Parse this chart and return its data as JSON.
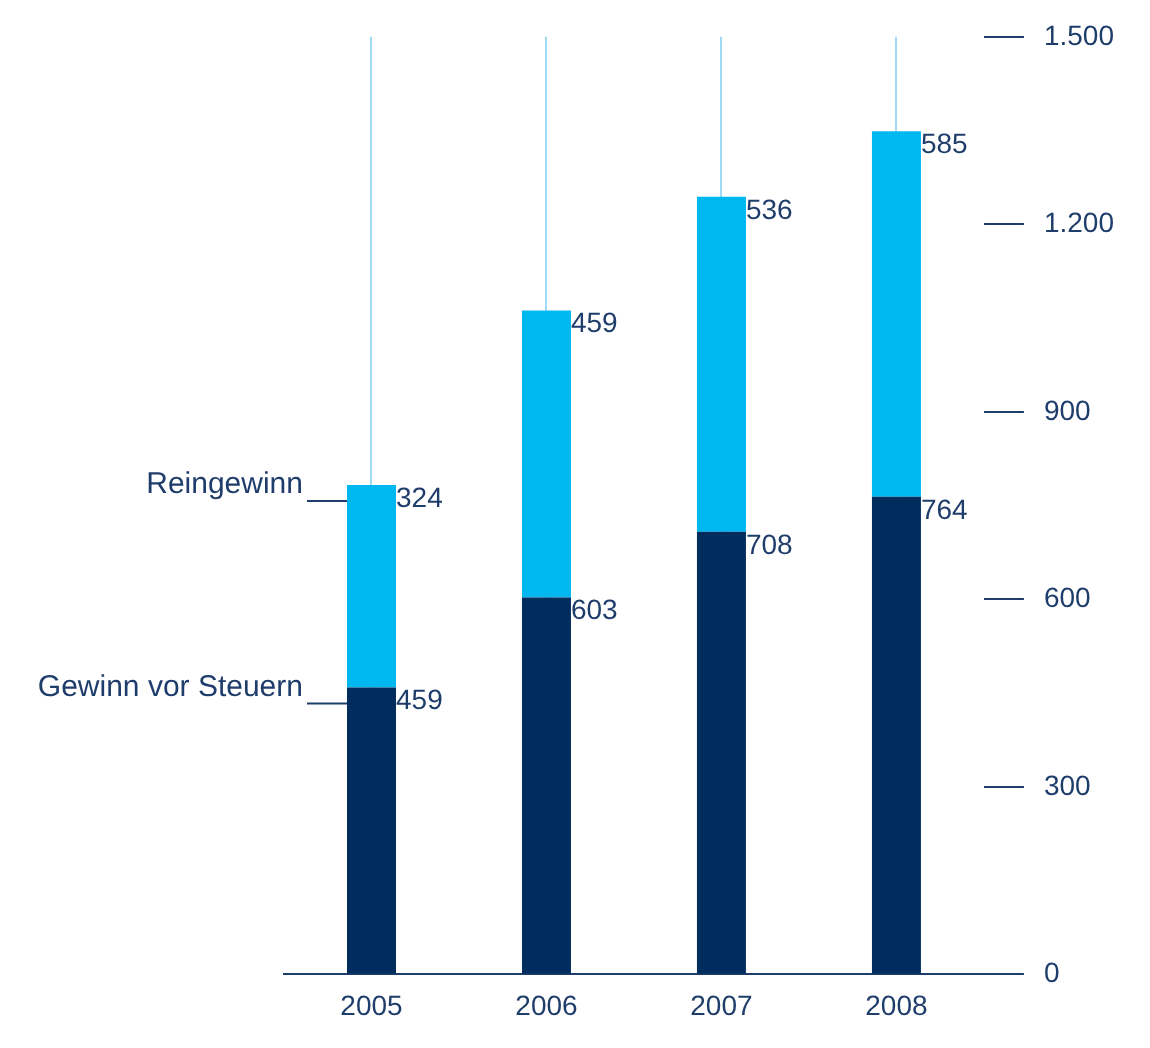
{
  "chart_data": {
    "type": "bar",
    "stacked": true,
    "categories": [
      "2005",
      "2006",
      "2007",
      "2008"
    ],
    "series": [
      {
        "name": "Gewinn vor Steuern",
        "color": "#002d5e",
        "values": [
          459,
          603,
          708,
          764
        ]
      },
      {
        "name": "Reingewinn",
        "color": "#00b8f0",
        "values": [
          324,
          459,
          536,
          585
        ]
      }
    ],
    "ylim": [
      0,
      1500
    ],
    "yticks": [
      0,
      300,
      600,
      900,
      {
        "value": 1200,
        "label": "1.200"
      },
      {
        "value": 1500,
        "label": "1.500"
      }
    ],
    "grid": "x",
    "legend": false,
    "data_labels": true
  }
}
